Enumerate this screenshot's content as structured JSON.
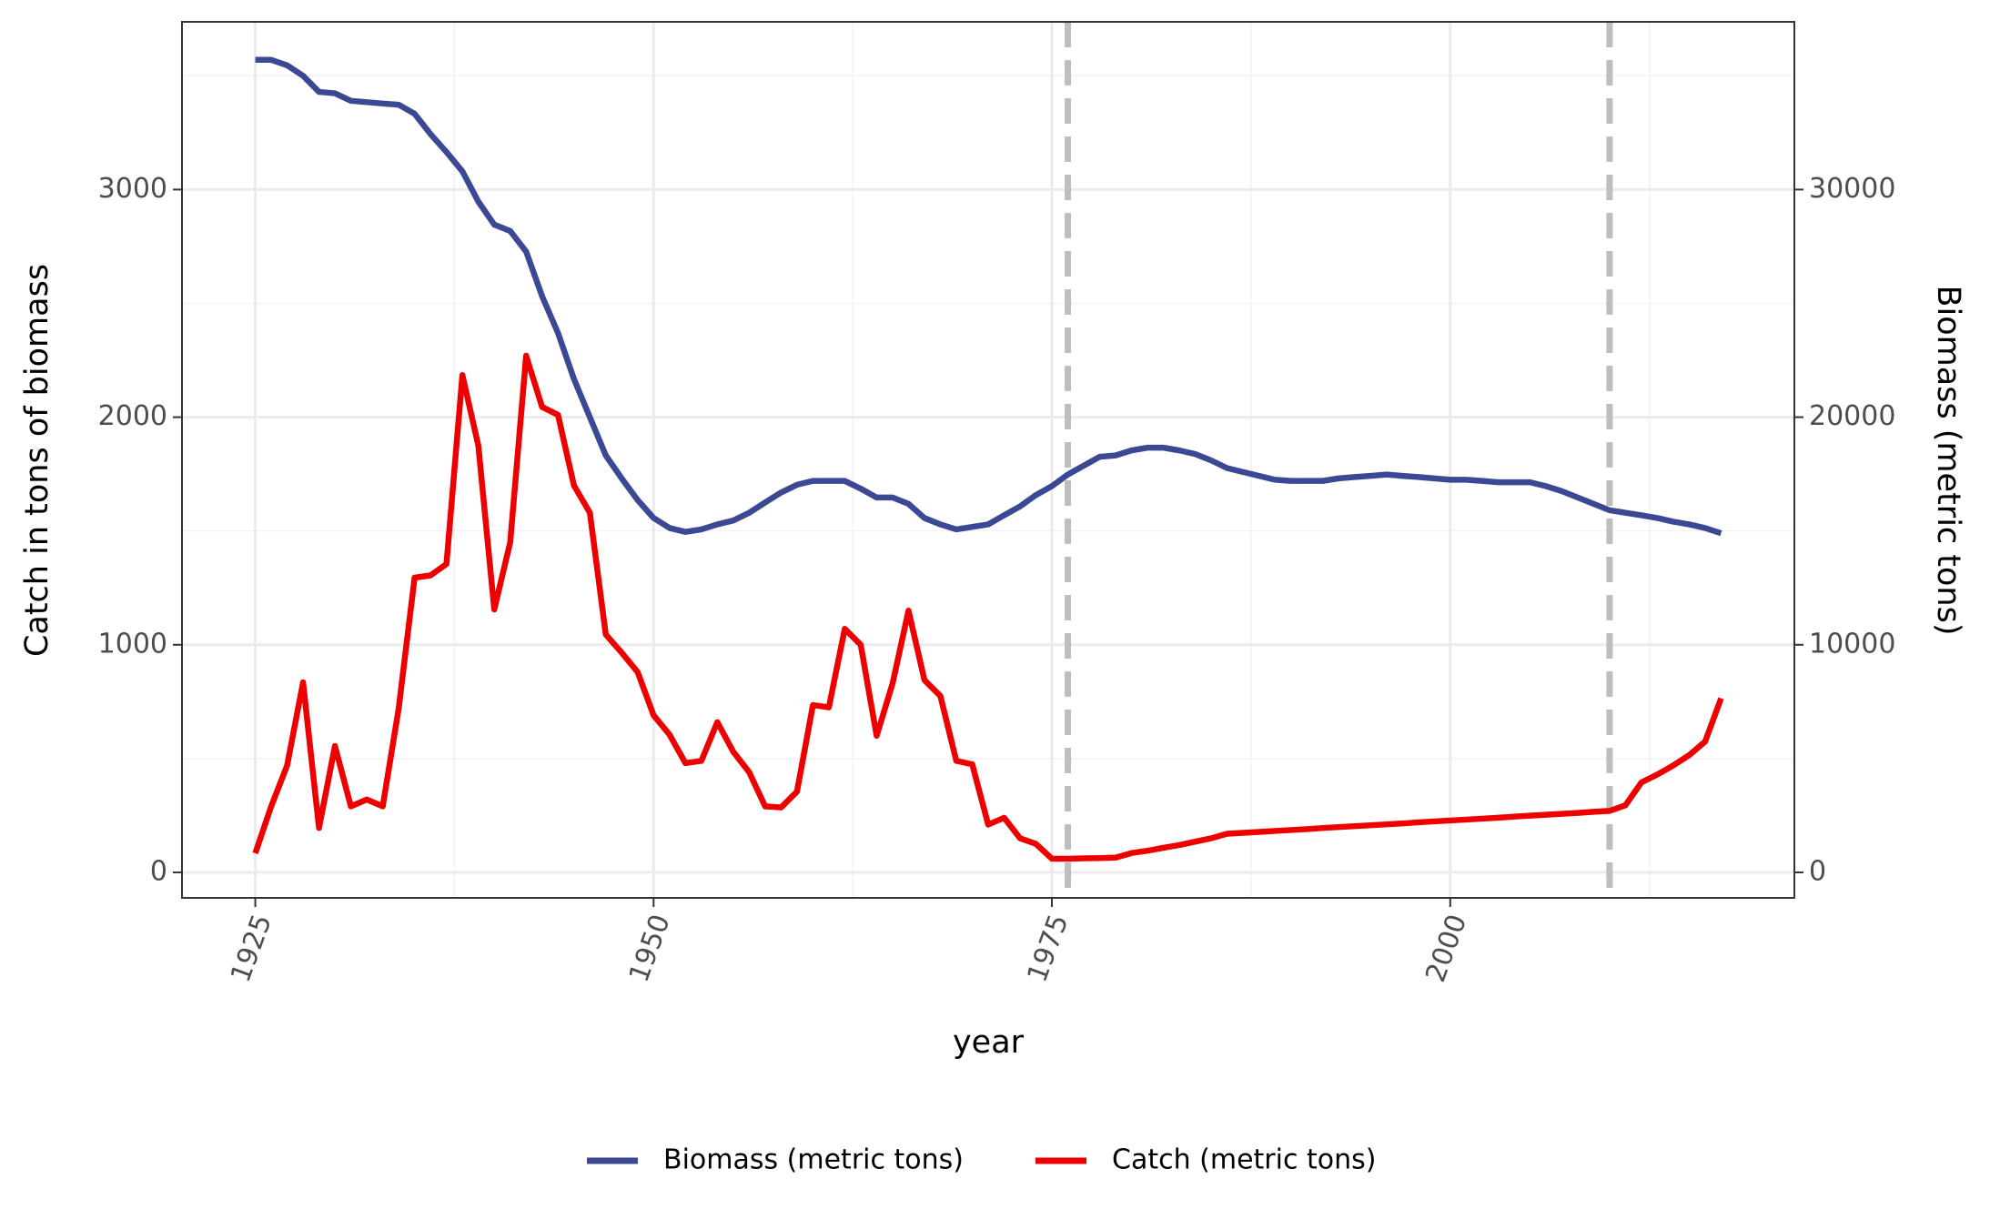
{
  "chart_data": {
    "type": "line",
    "x_label": "year",
    "y_label": "Catch in tons of biomass",
    "y2_label": "Biomass (metric tons)",
    "x": [
      1925,
      1926,
      1927,
      1928,
      1929,
      1930,
      1931,
      1932,
      1933,
      1934,
      1935,
      1936,
      1937,
      1938,
      1939,
      1940,
      1941,
      1942,
      1943,
      1944,
      1945,
      1946,
      1947,
      1948,
      1949,
      1950,
      1951,
      1952,
      1953,
      1954,
      1955,
      1956,
      1957,
      1958,
      1959,
      1960,
      1961,
      1962,
      1963,
      1964,
      1965,
      1966,
      1967,
      1968,
      1969,
      1970,
      1971,
      1972,
      1973,
      1974,
      1975,
      1976,
      1977,
      1978,
      1979,
      1980,
      1981,
      1982,
      1983,
      1984,
      1985,
      1986,
      1987,
      1988,
      1989,
      1990,
      1991,
      1992,
      1993,
      1994,
      1995,
      1996,
      1997,
      1998,
      1999,
      2000,
      2001,
      2002,
      2003,
      2004,
      2005,
      2006,
      2007,
      2008,
      2009,
      2010,
      2011,
      2012,
      2013,
      2014,
      2015,
      2016,
      2017
    ],
    "series": [
      {
        "name": "Biomass (metric tons)",
        "color": "#3b4994",
        "axis": "y2",
        "values": [
          35700,
          35700,
          35460,
          35000,
          34290,
          34230,
          33900,
          33840,
          33780,
          33730,
          33330,
          32440,
          31650,
          30800,
          29470,
          28460,
          28180,
          27280,
          25320,
          23700,
          21680,
          20000,
          18320,
          17310,
          16360,
          15570,
          15130,
          14960,
          15070,
          15290,
          15460,
          15800,
          16250,
          16690,
          17030,
          17200,
          17200,
          17200,
          16860,
          16470,
          16470,
          16190,
          15570,
          15290,
          15070,
          15180,
          15290,
          15690,
          16080,
          16580,
          16970,
          17480,
          17870,
          18260,
          18320,
          18540,
          18660,
          18660,
          18540,
          18380,
          18100,
          17760,
          17590,
          17420,
          17250,
          17200,
          17200,
          17200,
          17310,
          17370,
          17420,
          17480,
          17420,
          17370,
          17310,
          17250,
          17250,
          17200,
          17140,
          17140,
          17140,
          16970,
          16750,
          16470,
          16190,
          15910,
          15800,
          15690,
          15570,
          15410,
          15290,
          15130,
          14900
        ]
      },
      {
        "name": "Catch (metric tons)",
        "color": "#ee0000",
        "values": [
          84,
          290,
          470,
          835,
          195,
          555,
          290,
          320,
          290,
          720,
          1295,
          1305,
          1355,
          2185,
          1875,
          1155,
          1450,
          2270,
          2045,
          2010,
          1700,
          1580,
          1045,
          965,
          880,
          690,
          605,
          480,
          490,
          660,
          530,
          440,
          290,
          285,
          355,
          735,
          725,
          1070,
          1000,
          600,
          830,
          1150,
          845,
          775,
          490,
          475,
          210,
          240,
          150,
          125,
          60,
          60,
          62,
          63,
          65,
          85,
          95,
          108,
          120,
          135,
          150,
          170,
          174,
          178,
          182,
          186,
          190,
          195,
          199,
          203,
          207,
          211,
          215,
          220,
          224,
          228,
          232,
          236,
          240,
          245,
          249,
          253,
          257,
          261,
          266,
          270,
          295,
          395,
          430,
          470,
          515,
          575,
          765
        ]
      }
    ],
    "xlim": [
      1920.4,
      2021.6
    ],
    "xticks": [
      1925,
      1950,
      1975,
      2000
    ],
    "xminor": [
      1937.5,
      1962.5,
      1987.5,
      2012.5
    ],
    "ylim": [
      -112,
      3737
    ],
    "yticks": [
      0,
      1000,
      2000,
      3000
    ],
    "yminor": [
      500,
      1500,
      2500,
      3500
    ],
    "y2lim": [
      -1120,
      37370
    ],
    "y2ticks": [
      0,
      10000,
      20000,
      30000
    ],
    "vlines": [
      1976,
      2010
    ],
    "vline_color": "#bebebe",
    "grid": true,
    "legend": "bottom"
  }
}
